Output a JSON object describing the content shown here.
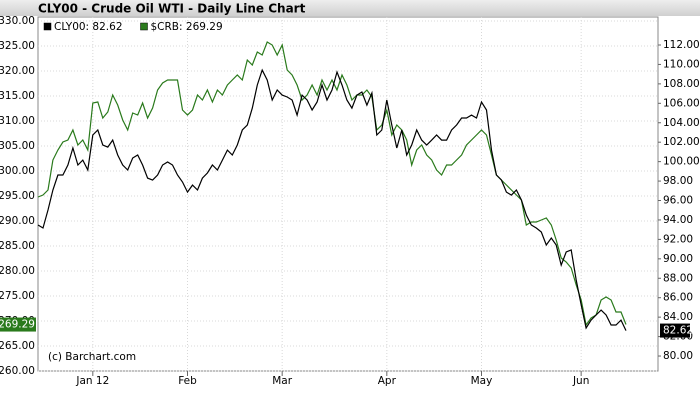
{
  "chart_data": {
    "type": "line",
    "title": "CLY00 - Crude Oil WTI - Daily Line Chart",
    "annotation": "(c) Barchart.com",
    "categories": [
      null,
      null,
      null,
      null,
      null,
      null,
      null,
      null,
      null,
      null,
      null,
      "Jan 12",
      null,
      null,
      null,
      null,
      null,
      null,
      null,
      null,
      null,
      null,
      null,
      null,
      null,
      null,
      null,
      null,
      null,
      null,
      "Feb",
      null,
      null,
      null,
      null,
      null,
      null,
      null,
      null,
      null,
      null,
      null,
      null,
      null,
      null,
      null,
      null,
      null,
      null,
      "Mar",
      null,
      null,
      null,
      null,
      null,
      null,
      null,
      null,
      null,
      null,
      null,
      null,
      null,
      null,
      null,
      null,
      null,
      null,
      null,
      null,
      "Apr",
      null,
      null,
      null,
      null,
      null,
      null,
      null,
      null,
      null,
      null,
      null,
      null,
      null,
      null,
      null,
      null,
      null,
      null,
      "May",
      null,
      null,
      null,
      null,
      null,
      null,
      null,
      null,
      null,
      null,
      null,
      null,
      null,
      null,
      null,
      null,
      null,
      null,
      null,
      "Jun",
      null,
      null,
      null,
      null,
      null,
      null,
      null,
      null,
      null
    ],
    "series": [
      {
        "name": "CLY00: 82.62",
        "color": "#000000",
        "axis": "y2",
        "last_label": "82.62",
        "values": [
          93.48,
          93.17,
          95.02,
          97.08,
          98.62,
          98.62,
          99.65,
          101.4,
          99.65,
          100.16,
          99.14,
          102.74,
          103.25,
          101.71,
          101.5,
          102.22,
          100.68,
          99.65,
          99.14,
          100.37,
          100.68,
          99.65,
          98.31,
          98.11,
          98.62,
          99.65,
          99.96,
          99.65,
          98.62,
          97.9,
          96.87,
          97.59,
          97.08,
          98.31,
          98.83,
          99.65,
          99.14,
          100.16,
          101.19,
          100.68,
          101.71,
          103.25,
          103.77,
          105.51,
          107.88,
          109.42,
          108.4,
          106.34,
          107.37,
          106.85,
          106.65,
          106.34,
          104.79,
          106.85,
          106.34,
          105.31,
          106.13,
          107.88,
          106.34,
          107.37,
          109.22,
          107.88,
          106.34,
          105.51,
          106.85,
          107.16,
          105.82,
          107.06,
          102.74,
          103.25,
          106.34,
          103.77,
          101.4,
          103.25,
          100.68,
          101.71,
          103.25,
          102.22,
          101.71,
          102.22,
          102.74,
          102.22,
          102.22,
          103.25,
          103.77,
          104.49,
          104.49,
          104.79,
          104.49,
          106.13,
          105.31,
          101.19,
          98.62,
          98.11,
          96.87,
          96.56,
          97.08,
          96.05,
          94.51,
          93.48,
          93.17,
          92.76,
          91.42,
          92.14,
          91.42,
          89.36,
          90.7,
          90.91,
          87.82,
          85.25,
          82.88,
          83.7,
          84.22,
          84.73,
          84.22,
          83.19,
          83.19,
          83.7,
          82.62
        ]
      },
      {
        "name": "$CRB: 269.29",
        "color": "#2a7a1c",
        "axis": "y",
        "last_label": "269.29",
        "values": [
          294.8,
          295.2,
          296.2,
          302.2,
          304.2,
          305.8,
          306.2,
          308.2,
          305.2,
          306.2,
          304.2,
          313.6,
          313.8,
          310.6,
          311.8,
          315.2,
          313.2,
          310.2,
          308.2,
          311.6,
          311.2,
          313.6,
          310.6,
          312.6,
          316.2,
          317.6,
          318.2,
          318.2,
          318.2,
          312.2,
          311.2,
          312.2,
          315.2,
          314.2,
          316.2,
          313.8,
          316.2,
          315.2,
          317.2,
          318.2,
          319.2,
          318.2,
          322.2,
          321.2,
          323.8,
          323.2,
          325.8,
          325.2,
          323.2,
          325.2,
          320.2,
          319.2,
          317.2,
          314.2,
          315.2,
          317.2,
          315.2,
          318.2,
          316.2,
          318.2,
          316.2,
          319.2,
          317.2,
          314.2,
          315.2,
          315.2,
          316.2,
          314.8,
          308.2,
          309.2,
          312.2,
          307.2,
          309.2,
          308.2,
          306.2,
          301.2,
          304.2,
          305.2,
          303.2,
          302.2,
          300.2,
          299.2,
          301.2,
          301.2,
          302.2,
          303.2,
          305.2,
          306.2,
          307.2,
          308.2,
          307.2,
          303.2,
          299.2,
          298.2,
          297.2,
          296.2,
          295.2,
          294.2,
          289.2,
          289.8,
          289.8,
          290.2,
          290.6,
          289.2,
          286.2,
          282.6,
          281.8,
          280.6,
          277.2,
          274.2,
          269.2,
          270.6,
          271.2,
          274.2,
          274.8,
          274.2,
          271.8,
          271.8,
          269.29
        ]
      }
    ],
    "ylim": [
      260,
      330.8
    ],
    "yticks": [
      {
        "value": 260,
        "label": "260.00"
      },
      {
        "value": 265,
        "label": "265.00"
      },
      {
        "value": 270,
        "label": "270.00"
      },
      {
        "value": 275,
        "label": "275.00"
      },
      {
        "value": 280,
        "label": "280.00"
      },
      {
        "value": 285,
        "label": "285.00"
      },
      {
        "value": 290,
        "label": "290.00"
      },
      {
        "value": 295,
        "label": "295.00"
      },
      {
        "value": 300,
        "label": "300.00"
      },
      {
        "value": 305,
        "label": "305.00"
      },
      {
        "value": 310,
        "label": "310.00"
      },
      {
        "value": 315,
        "label": "315.00"
      },
      {
        "value": 320,
        "label": "320.00"
      },
      {
        "value": 325,
        "label": "325.00"
      },
      {
        "value": 330,
        "label": "330.00"
      }
    ],
    "y2lim": [
      78.46,
      114.88
    ],
    "y2ticks": [
      {
        "value": 80,
        "label": "80.00"
      },
      {
        "value": 82,
        "label": "82.00"
      },
      {
        "value": 84,
        "label": "84.00"
      },
      {
        "value": 86,
        "label": "86.00"
      },
      {
        "value": 88,
        "label": "88.00"
      },
      {
        "value": 90,
        "label": "90.00"
      },
      {
        "value": 92,
        "label": "92.00"
      },
      {
        "value": 94,
        "label": "94.00"
      },
      {
        "value": 96,
        "label": "96.00"
      },
      {
        "value": 98,
        "label": "98.00"
      },
      {
        "value": 100,
        "label": "100.00"
      },
      {
        "value": 102,
        "label": "102.00"
      },
      {
        "value": 104,
        "label": "104.00"
      },
      {
        "value": 106,
        "label": "106.00"
      },
      {
        "value": 108,
        "label": "108.00"
      },
      {
        "value": 110,
        "label": "110.00"
      },
      {
        "value": 112,
        "label": "112.00"
      }
    ],
    "grid": true
  }
}
